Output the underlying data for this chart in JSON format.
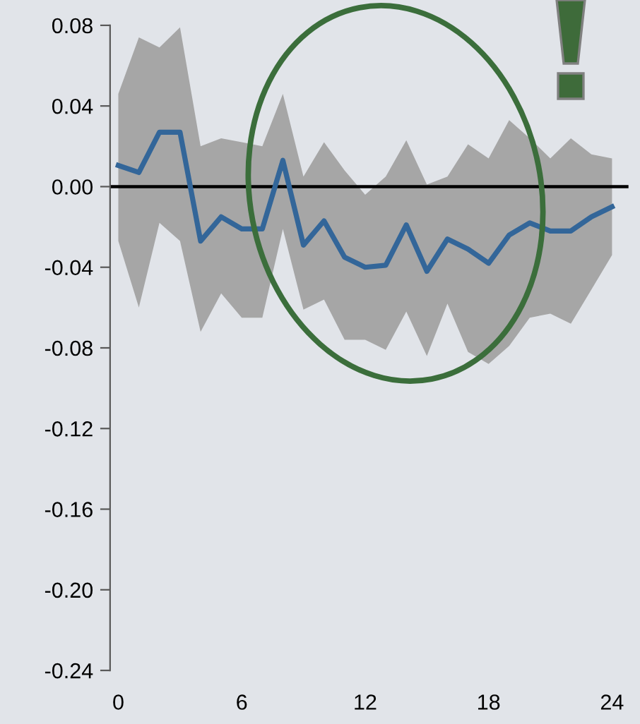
{
  "chart_data": {
    "type": "line",
    "x": [
      0,
      1,
      2,
      3,
      4,
      5,
      6,
      7,
      8,
      9,
      10,
      11,
      12,
      13,
      14,
      15,
      16,
      17,
      18,
      19,
      20,
      21,
      22,
      23,
      24
    ],
    "series": [
      {
        "color": "#336699",
        "lower": [
          -0.027,
          -0.06,
          -0.018,
          -0.027,
          -0.072,
          -0.053,
          -0.065,
          -0.065,
          -0.021,
          -0.061,
          -0.056,
          -0.076,
          -0.076,
          -0.081,
          -0.062,
          -0.084,
          -0.058,
          -0.082,
          -0.088,
          -0.079,
          -0.065,
          -0.063,
          -0.068,
          -0.051,
          -0.034
        ],
        "upper": [
          0.046,
          0.074,
          0.069,
          0.079,
          0.02,
          0.024,
          0.022,
          0.02,
          0.046,
          0.005,
          0.022,
          0.008,
          -0.004,
          0.005,
          0.023,
          0.001,
          0.005,
          0.021,
          0.014,
          0.033,
          0.024,
          0.014,
          0.024,
          0.016,
          0.014
        ],
        "values": [
          0.0105,
          0.007,
          0.027,
          0.027,
          -0.027,
          -0.015,
          -0.021,
          -0.021,
          0.013,
          -0.029,
          -0.017,
          -0.035,
          -0.04,
          -0.039,
          -0.019,
          -0.042,
          -0.026,
          -0.031,
          -0.038,
          -0.024,
          -0.018,
          -0.022,
          -0.022,
          -0.015,
          -0.01
        ]
      }
    ],
    "xlim": [
      -0.4,
      24.8
    ],
    "xticks": [
      0,
      6,
      12,
      18,
      24
    ],
    "ylim": [
      -0.24,
      0.08
    ],
    "yticks": [
      {
        "value": -0.24,
        "label": "-0.24"
      },
      {
        "value": -0.2,
        "label": "-0.20"
      },
      {
        "value": -0.16,
        "label": "-0.16"
      },
      {
        "value": -0.12,
        "label": "-0.12"
      },
      {
        "value": -0.08,
        "label": "-0.08"
      },
      {
        "value": -0.04,
        "label": "-0.04"
      },
      {
        "value": 0,
        "label": "0.00"
      },
      {
        "value": 0.04,
        "label": "0.04"
      },
      {
        "value": 0.08,
        "label": "0.08"
      }
    ],
    "ref_lines": [
      {
        "axis": "y",
        "value": 0,
        "color": "#000000"
      }
    ],
    "grid": false,
    "marker": "none",
    "line_style": "solid"
  }
}
